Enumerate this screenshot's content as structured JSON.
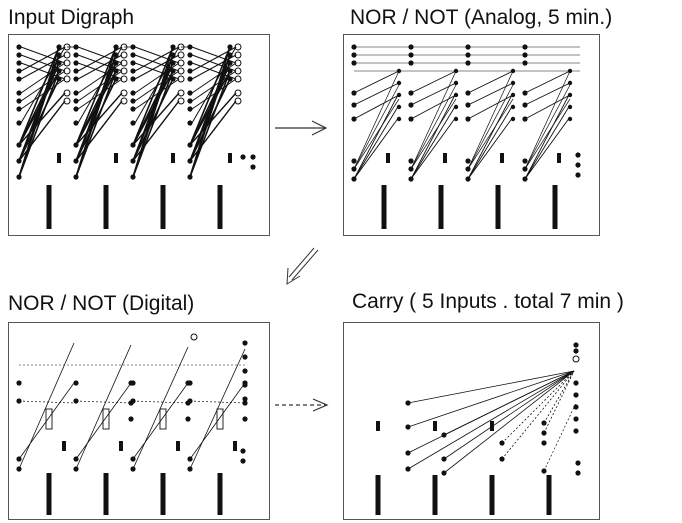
{
  "panels": [
    {
      "title": "Input Digraph",
      "style": "dense"
    },
    {
      "title": "NOR / NOT (Analog, 5 min.)",
      "style": "analog"
    },
    {
      "title": "NOR / NOT (Digital)",
      "style": "digital"
    },
    {
      "title": "Carry ( 5 Inputs . total 7 min )",
      "style": "carry"
    }
  ],
  "transitions": [
    {
      "from": "Input Digraph",
      "to": "NOR / NOT (Analog, 5 min.)",
      "style": "solid"
    },
    {
      "from": "NOR / NOT (Analog, 5 min.)",
      "to": "NOR / NOT (Digital)",
      "style": "solid"
    },
    {
      "from": "NOR / NOT (Digital)",
      "to": "Carry ( 5 Inputs . total 7 min )",
      "style": "dashed"
    }
  ],
  "colors": {
    "ink": "#111111",
    "frame": "#555555",
    "background": "#ffffff"
  }
}
